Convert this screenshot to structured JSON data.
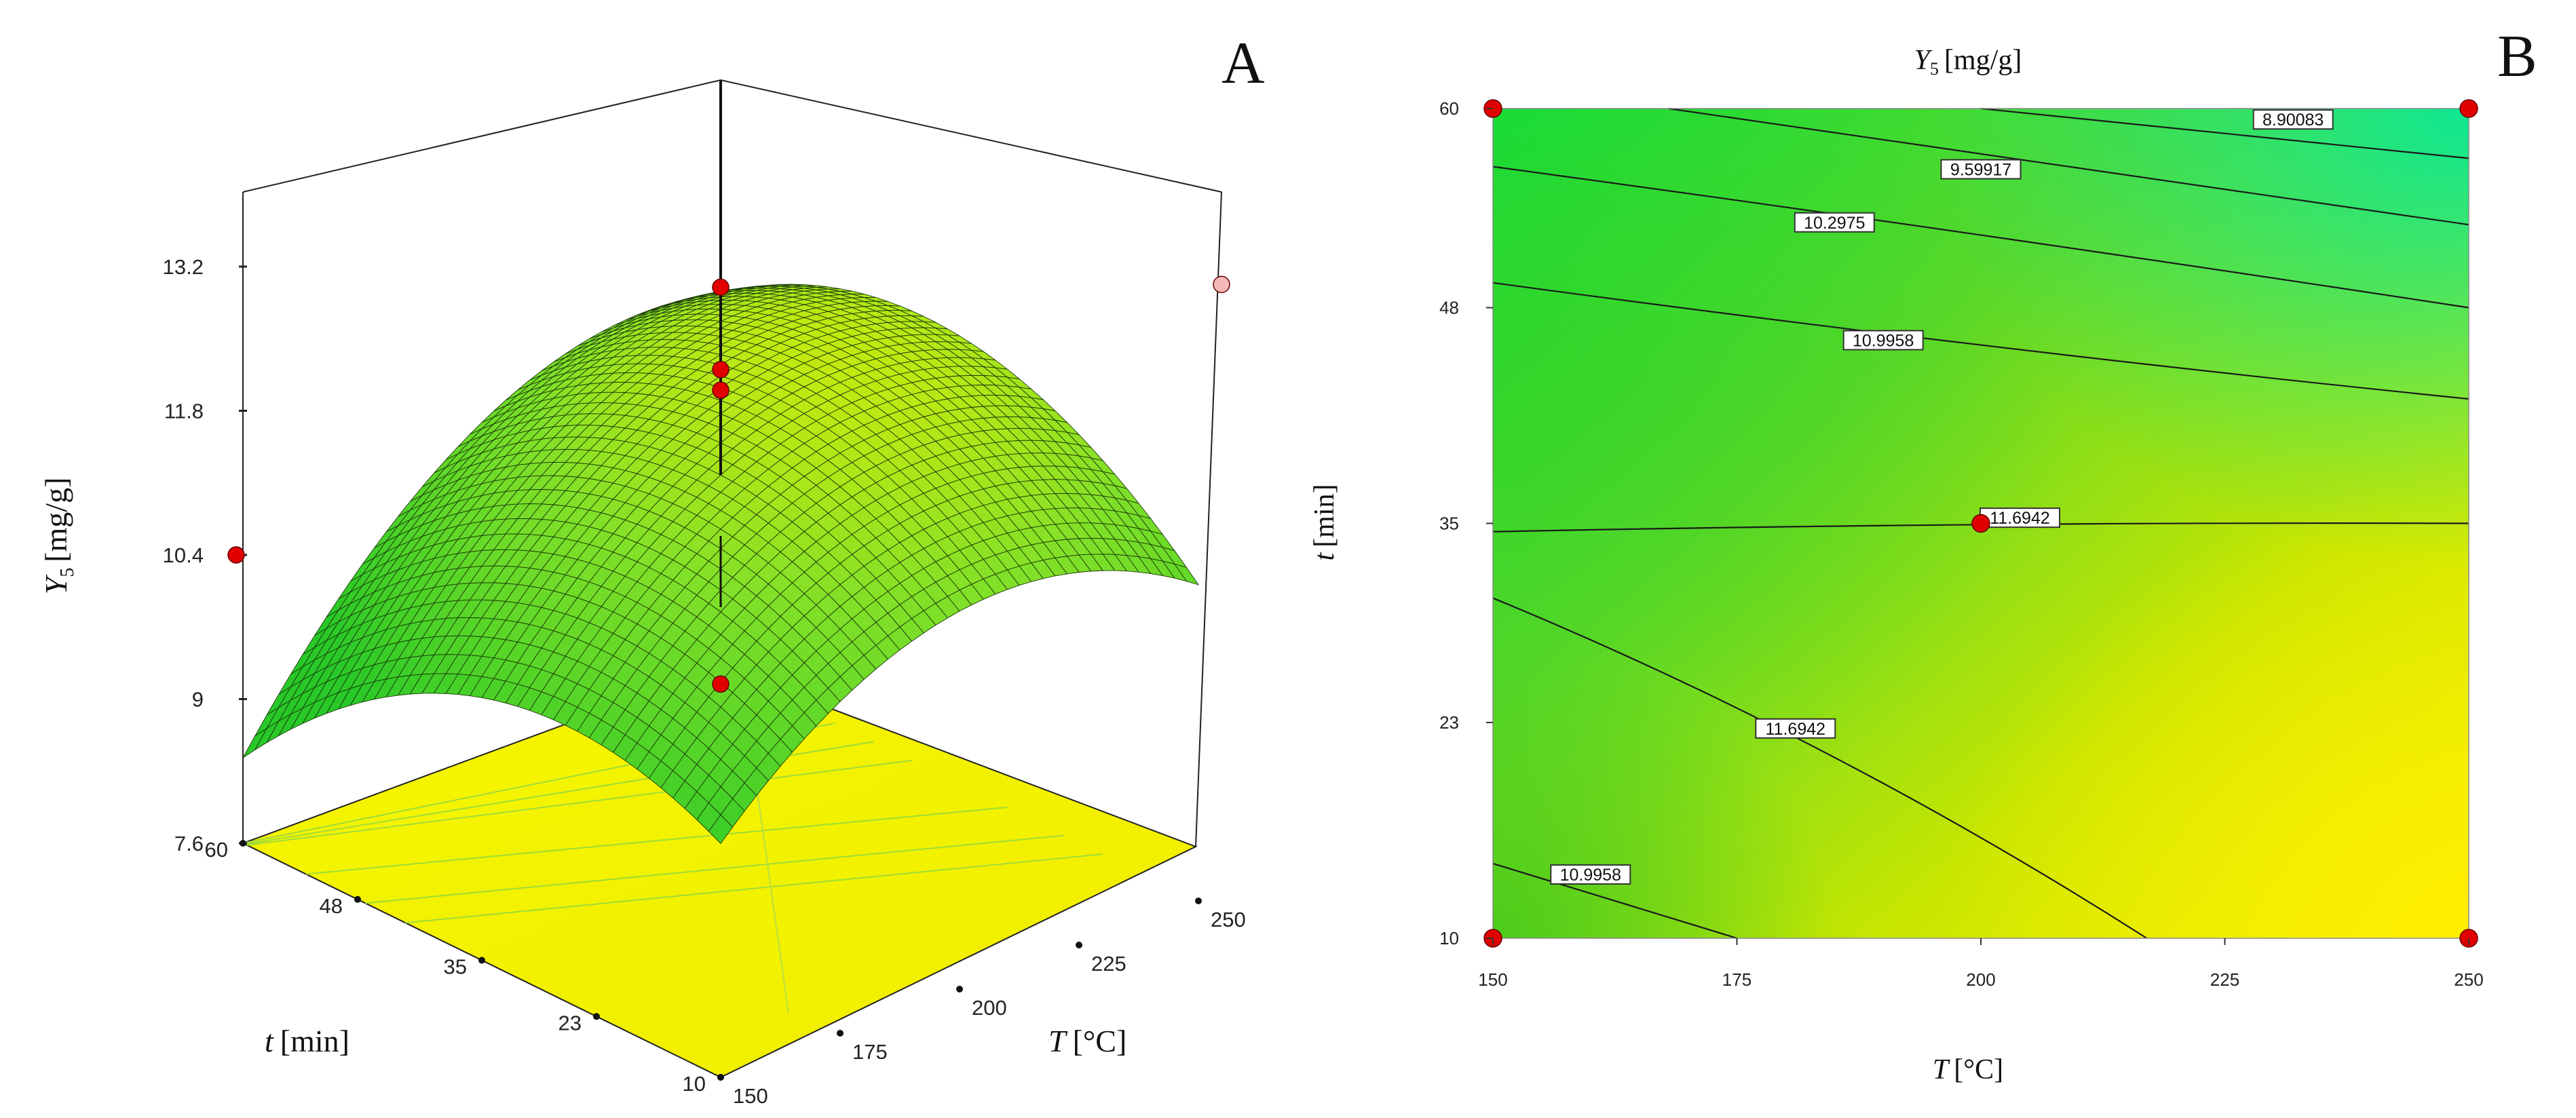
{
  "panels": {
    "a": {
      "letter": "A"
    },
    "b": {
      "letter": "B"
    }
  },
  "axes": {
    "y_var": "Y",
    "y_sub": "5",
    "y_unit": "[mg/g]",
    "t_var": "t",
    "t_unit": "[min]",
    "T_var": "T",
    "T_unit": "[°C]"
  },
  "chart_data": [
    {
      "type": "surface",
      "panel": "A",
      "x_axis": {
        "name": "T",
        "ticks": [
          "150",
          "175",
          "200",
          "225",
          "250"
        ],
        "range": [
          150,
          250
        ]
      },
      "y_axis": {
        "name": "t",
        "ticks": [
          "10",
          "23",
          "35",
          "48",
          "60"
        ],
        "range": [
          10,
          60
        ]
      },
      "z_axis": {
        "label": "Y5 [mg/g]",
        "ticks": [
          "7.6",
          "9",
          "10.4",
          "11.8",
          "13.2"
        ],
        "range": [
          7.6,
          13.2
        ]
      },
      "surface_colormap": [
        "#2fc82a",
        "#7fe02a",
        "#f2f200"
      ],
      "floor_color": "#f2f200",
      "design_points": [
        {
          "T": 150,
          "t": 60,
          "Y5": 10.4
        },
        {
          "T": 250,
          "t": 60,
          "Y5": 12.5
        },
        {
          "T": 200,
          "t": 35,
          "Y5": 13.0
        },
        {
          "T": 200,
          "t": 35,
          "Y5": 12.2
        },
        {
          "T": 200,
          "t": 35,
          "Y5": 12.0
        },
        {
          "T": 150,
          "t": 10,
          "Y5": 10.2
        }
      ]
    },
    {
      "type": "contour",
      "panel": "B",
      "title": "Y5 [mg/g]",
      "x": {
        "label": "T [°C]",
        "ticks": [
          "150",
          "175",
          "200",
          "225",
          "250"
        ],
        "range": [
          150,
          250
        ]
      },
      "y": {
        "label": "t [min]",
        "ticks": [
          "10",
          "23",
          "35",
          "48",
          "60"
        ],
        "range": [
          10,
          60
        ]
      },
      "contour_labels": [
        "8.90083",
        "9.59917",
        "10.2975",
        "10.9958",
        "11.6942",
        "11.6942",
        "10.9958"
      ],
      "contours": [
        {
          "level": 8.90083,
          "points": [
            [
              200,
              60
            ],
            [
              250,
              57
            ]
          ]
        },
        {
          "level": 9.59917,
          "points": [
            [
              168,
              60
            ],
            [
              210,
              56.5
            ],
            [
              250,
              53
            ]
          ]
        },
        {
          "level": 10.2975,
          "points": [
            [
              150,
              56.5
            ],
            [
              200,
              52.5
            ],
            [
              250,
              48
            ]
          ]
        },
        {
          "level": 10.9958,
          "points": [
            [
              150,
              49.5
            ],
            [
              200,
              45.5
            ],
            [
              250,
              42.5
            ]
          ]
        },
        {
          "level": 11.6942,
          "points": [
            [
              150,
              34.5
            ],
            [
              200,
              35.1
            ],
            [
              250,
              35
            ]
          ]
        },
        {
          "level": 11.6942,
          "points": [
            [
              150,
              30.5
            ],
            [
              185,
              22
            ],
            [
              217,
              10
            ]
          ]
        },
        {
          "level": 10.9958,
          "points": [
            [
              150,
              14.5
            ],
            [
              175,
              10
            ]
          ]
        }
      ],
      "colormap": [
        "#00e65a",
        "#2ed82a",
        "#a6e400",
        "#f2f200"
      ],
      "design_points": [
        {
          "T": 150,
          "t": 60
        },
        {
          "T": 250,
          "t": 60
        },
        {
          "T": 150,
          "t": 10
        },
        {
          "T": 250,
          "t": 10
        },
        {
          "T": 200,
          "t": 35
        }
      ]
    }
  ]
}
